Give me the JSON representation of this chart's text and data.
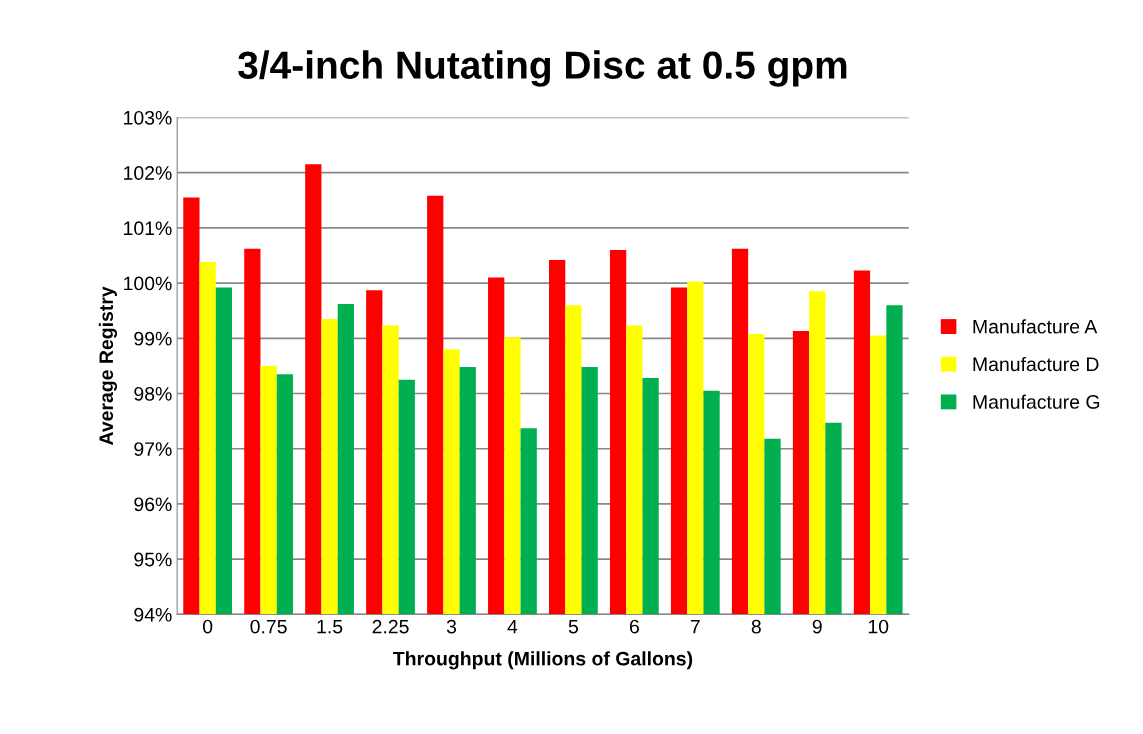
{
  "chart_data": {
    "type": "bar",
    "title": "3/4-inch Nutating Disc at 0.5 gpm",
    "xlabel": "Throughput (Millions of Gallons)",
    "ylabel": "Average Registry",
    "categories": [
      "0",
      "0.75",
      "1.5",
      "2.25",
      "3",
      "4",
      "5",
      "6",
      "7",
      "8",
      "9",
      "10"
    ],
    "series": [
      {
        "name": "Manufacture A",
        "color": "#ff0000",
        "values": [
          101.55,
          100.62,
          102.15,
          99.87,
          101.58,
          100.1,
          100.42,
          100.6,
          99.92,
          100.62,
          99.13,
          100.23
        ]
      },
      {
        "name": "Manufacture D",
        "color": "#ffff00",
        "values": [
          100.38,
          98.5,
          99.35,
          99.23,
          98.8,
          99.02,
          99.6,
          99.23,
          100.03,
          99.08,
          99.85,
          99.05
        ]
      },
      {
        "name": "Manufacture G",
        "color": "#00b050",
        "values": [
          99.92,
          98.35,
          99.62,
          98.25,
          98.48,
          97.37,
          98.48,
          98.28,
          98.05,
          97.18,
          97.47,
          99.6
        ]
      }
    ],
    "ylim": [
      94,
      103
    ],
    "yticks": [
      {
        "value": 94,
        "label": "94%"
      },
      {
        "value": 95,
        "label": "95%"
      },
      {
        "value": 96,
        "label": "96%"
      },
      {
        "value": 97,
        "label": "97%"
      },
      {
        "value": 98,
        "label": "98%"
      },
      {
        "value": 99,
        "label": "99%"
      },
      {
        "value": 100,
        "label": "100%"
      },
      {
        "value": 101,
        "label": "101%"
      },
      {
        "value": 102,
        "label": "102%"
      },
      {
        "value": 103,
        "label": "103%"
      }
    ],
    "grid": "y",
    "legend": "right"
  }
}
